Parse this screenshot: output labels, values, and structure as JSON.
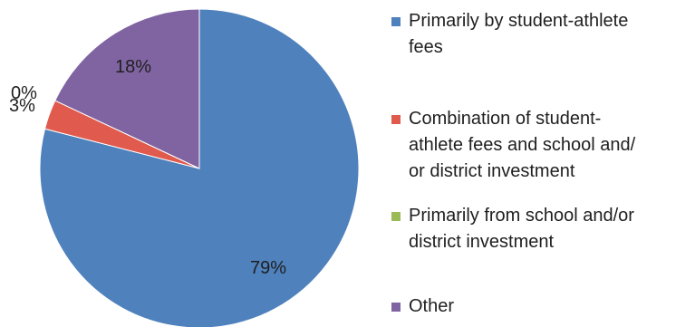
{
  "chart_data": {
    "type": "pie",
    "categories": [
      "Primarily by student-athlete fees",
      "Combination of student-athlete fees and school and/or district investment",
      "Primarily from school and/or district investment",
      "Other"
    ],
    "values": [
      79,
      3,
      0,
      18
    ],
    "data_labels": [
      "79%",
      "3%",
      "0%",
      "18%"
    ],
    "legend_labels": [
      "Primarily by student-athlete\nfees",
      "Combination of student-\nathlete fees and school and/\nor district investment",
      "Primarily from school and/or\ndistrict investment",
      "Other"
    ],
    "colors": [
      "#4F81BD",
      "#E05A4E",
      "#9BBB59",
      "#8064A2"
    ],
    "legend_position": "right",
    "start_angle_deg": 0,
    "direction": "clockwise"
  }
}
